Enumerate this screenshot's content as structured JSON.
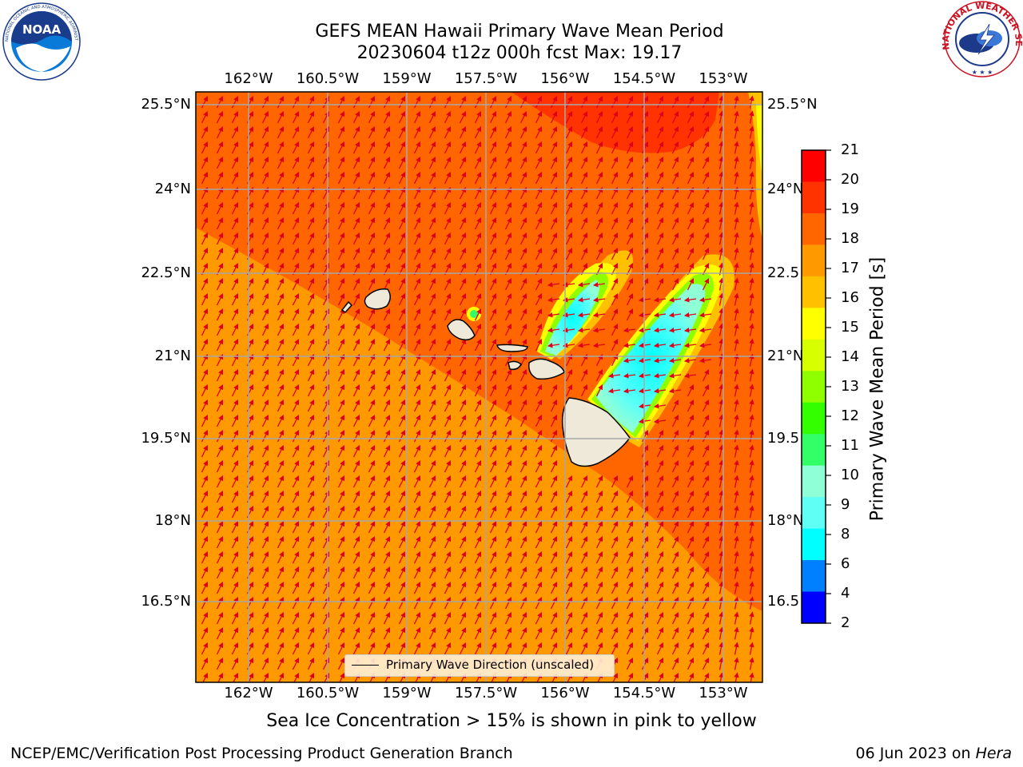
{
  "title": {
    "line1": "GEFS MEAN Hawaii Primary Wave Mean Period",
    "line2": "20230604 t12z 000h fcst   Max: 19.17"
  },
  "logos": {
    "noaa": {
      "name": "NOAA",
      "ring_text": "NATIONAL OCEANIC AND ATMOSPHERIC ADMINISTRATION · U.S. DEPARTMENT OF COMMERCE"
    },
    "nws": {
      "ring_text": "NATIONAL WEATHER SERVICE"
    }
  },
  "map": {
    "lon_ticks": [
      "162°W",
      "160.5°W",
      "159°W",
      "157.5°W",
      "156°W",
      "154.5°W",
      "153°W"
    ],
    "lat_ticks": [
      "25.5°N",
      "24°N",
      "22.5°N",
      "21°N",
      "19.5°N",
      "18°N",
      "16.5°N"
    ],
    "lat_ticks_right": [
      "25.5°N",
      "24°N",
      "22.5",
      "21°N",
      "19.5",
      "18°N",
      "16.5"
    ],
    "legend_label": "Primary Wave Direction (unscaled)",
    "arrow_color": "#e0001c",
    "land_color": "#efe9da"
  },
  "colorbar": {
    "label": "Primary Wave Mean Period [s]",
    "ticks": [
      "21",
      "20",
      "19",
      "18",
      "17",
      "16",
      "15",
      "14",
      "13",
      "12",
      "11",
      "10",
      "9",
      "8",
      "6",
      "4",
      "2"
    ],
    "colors": [
      "#ff0000",
      "#ff3300",
      "#ff6600",
      "#ff9900",
      "#ffc000",
      "#ffff00",
      "#d7ff00",
      "#8fff00",
      "#33ff00",
      "#33ff66",
      "#8fffd7",
      "#5ffff6",
      "#00ffff",
      "#0080ff",
      "#0000ff"
    ]
  },
  "caption": "Sea Ice Concentration > 15% is shown in pink to yellow",
  "footer": {
    "left": "NCEP/EMC/Verification Post Processing Product Generation Branch",
    "right_date": "06 Jun 2023 on ",
    "right_machine": "Hera"
  }
}
